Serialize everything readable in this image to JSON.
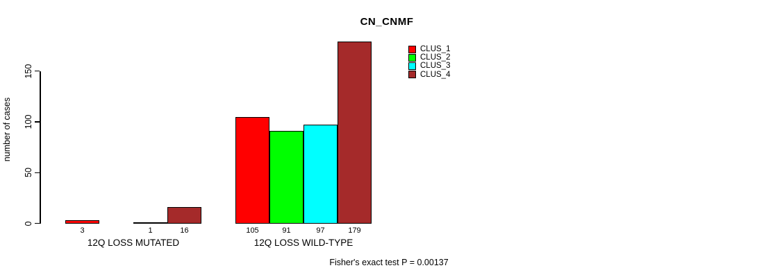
{
  "title": "CN_CNMF",
  "colors": {
    "clus_1": "#FF0000",
    "clus_2": "#00FF00",
    "clus_3": "#00FFFF",
    "clus_4": "#A52A2A",
    "axis": "#000000",
    "background": "#FFFFFF"
  },
  "chart_data": {
    "type": "bar",
    "title": "CN_CNMF",
    "xlabel": "",
    "ylabel": "number of cases",
    "categories": [
      "12Q LOSS MUTATED",
      "12Q LOSS WILD-TYPE"
    ],
    "series": [
      {
        "name": "CLUS_1",
        "color": "#FF0000",
        "values": [
          3,
          105
        ]
      },
      {
        "name": "CLUS_2",
        "color": "#00FF00",
        "values": [
          0,
          91
        ]
      },
      {
        "name": "CLUS_3",
        "color": "#00FFFF",
        "values": [
          1,
          97
        ]
      },
      {
        "name": "CLUS_4",
        "color": "#A52A2A",
        "values": [
          16,
          179
        ]
      }
    ],
    "bar_value_labels": [
      [
        "3",
        "",
        "1",
        "16"
      ],
      [
        "105",
        "91",
        "97",
        "179"
      ]
    ],
    "yticks": [
      0,
      50,
      100,
      150
    ],
    "ylim": [
      0,
      180
    ],
    "grid": false,
    "legend_position": "top-right",
    "legend_entries": [
      "CLUS_1",
      "CLUS_2",
      "CLUS_3",
      "CLUS_4"
    ],
    "annotation": "Fisher's exact test P = 0.00137"
  }
}
